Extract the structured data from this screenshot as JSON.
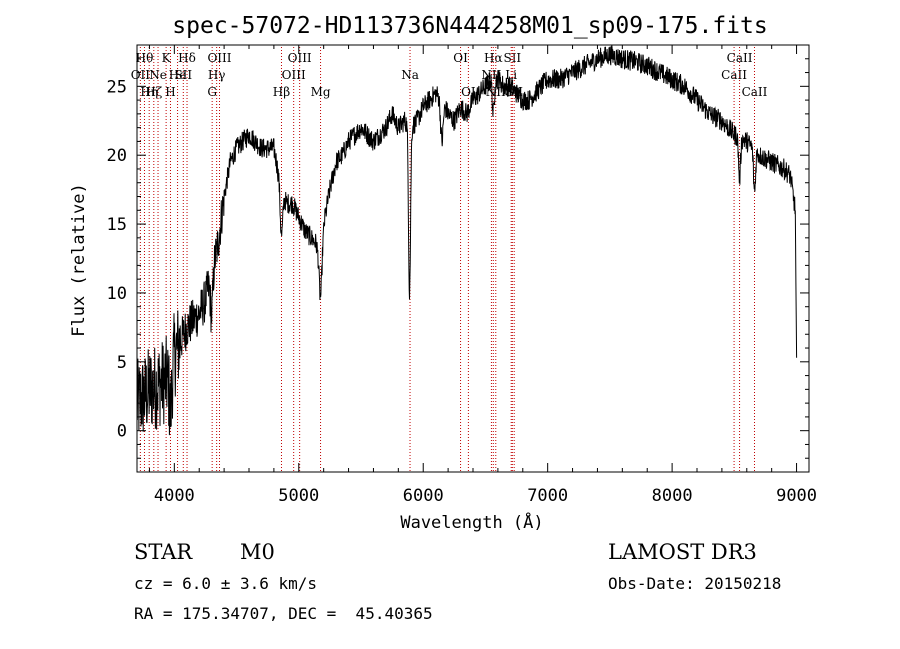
{
  "chart_data": {
    "type": "line",
    "title": "spec-57072-HD113736N444258M01_sp09-175.fits",
    "xlabel": "Wavelength (Å)",
    "ylabel": "Flux (relative)",
    "xlim": [
      3700,
      9100
    ],
    "ylim": [
      -3,
      28
    ],
    "xticks": [
      4000,
      5000,
      6000,
      7000,
      8000,
      9000
    ],
    "yticks": [
      0,
      5,
      10,
      15,
      20,
      25
    ],
    "grid": false,
    "line_color": "#000000",
    "marker_color": "#c00000",
    "spectrum_nodes": [
      [
        3700,
        2.0
      ],
      [
        3760,
        2.5
      ],
      [
        3800,
        3.0
      ],
      [
        3850,
        3.2
      ],
      [
        3900,
        3.5
      ],
      [
        3950,
        3.8
      ],
      [
        4000,
        5.5
      ],
      [
        4050,
        6.5
      ],
      [
        4100,
        7.5
      ],
      [
        4150,
        8.0
      ],
      [
        4200,
        8.5
      ],
      [
        4250,
        9.5
      ],
      [
        4300,
        11.5
      ],
      [
        4350,
        13.5
      ],
      [
        4400,
        17.0
      ],
      [
        4450,
        19.5
      ],
      [
        4500,
        20.5
      ],
      [
        4550,
        21.0
      ],
      [
        4600,
        21.5
      ],
      [
        4650,
        21.0
      ],
      [
        4700,
        20.5
      ],
      [
        4750,
        20.5
      ],
      [
        4800,
        20.5
      ],
      [
        4850,
        18.0
      ],
      [
        4900,
        16.5
      ],
      [
        4950,
        16.5
      ],
      [
        5000,
        15.5
      ],
      [
        5050,
        14.5
      ],
      [
        5100,
        14.0
      ],
      [
        5150,
        13.5
      ],
      [
        5200,
        15.0
      ],
      [
        5250,
        17.5
      ],
      [
        5300,
        19.5
      ],
      [
        5350,
        20.0
      ],
      [
        5400,
        21.0
      ],
      [
        5450,
        21.5
      ],
      [
        5500,
        22.0
      ],
      [
        5550,
        21.5
      ],
      [
        5600,
        21.0
      ],
      [
        5650,
        21.5
      ],
      [
        5700,
        22.0
      ],
      [
        5750,
        23.0
      ],
      [
        5800,
        22.0
      ],
      [
        5850,
        22.5
      ],
      [
        5900,
        22.0
      ],
      [
        5950,
        22.5
      ],
      [
        6000,
        23.5
      ],
      [
        6050,
        24.0
      ],
      [
        6100,
        24.5
      ],
      [
        6150,
        24.0
      ],
      [
        6200,
        23.0
      ],
      [
        6250,
        22.5
      ],
      [
        6300,
        23.5
      ],
      [
        6350,
        23.0
      ],
      [
        6400,
        24.0
      ],
      [
        6450,
        24.5
      ],
      [
        6500,
        25.0
      ],
      [
        6550,
        25.5
      ],
      [
        6600,
        25.5
      ],
      [
        6650,
        25.0
      ],
      [
        6700,
        25.0
      ],
      [
        6750,
        24.5
      ],
      [
        6800,
        24.0
      ],
      [
        6850,
        24.0
      ],
      [
        6900,
        24.5
      ],
      [
        6950,
        25.0
      ],
      [
        7000,
        25.5
      ],
      [
        7100,
        25.5
      ],
      [
        7200,
        26.0
      ],
      [
        7300,
        26.5
      ],
      [
        7400,
        27.0
      ],
      [
        7500,
        27.3
      ],
      [
        7600,
        27.0
      ],
      [
        7700,
        26.8
      ],
      [
        7800,
        26.5
      ],
      [
        7900,
        26.0
      ],
      [
        8000,
        25.5
      ],
      [
        8100,
        25.0
      ],
      [
        8200,
        24.0
      ],
      [
        8300,
        23.0
      ],
      [
        8400,
        22.5
      ],
      [
        8500,
        21.5
      ],
      [
        8600,
        21.0
      ],
      [
        8700,
        20.0
      ],
      [
        8800,
        19.5
      ],
      [
        8900,
        19.0
      ],
      [
        8950,
        18.5
      ],
      [
        8990,
        16.0
      ],
      [
        9000,
        5.0
      ]
    ],
    "absorption_features": [
      {
        "x": 5890,
        "depth": 12.0,
        "width": 8
      },
      {
        "x": 5175,
        "depth": 4.5,
        "width": 12
      },
      {
        "x": 4861,
        "depth": 3.5,
        "width": 10
      },
      {
        "x": 6563,
        "depth": 2.5,
        "width": 8
      },
      {
        "x": 6150,
        "depth": 3.0,
        "width": 10
      },
      {
        "x": 8542,
        "depth": 3.0,
        "width": 8
      },
      {
        "x": 8662,
        "depth": 3.0,
        "width": 8
      },
      {
        "x": 4300,
        "depth": 3.0,
        "width": 10
      },
      {
        "x": 3970,
        "depth": 3.0,
        "width": 10
      }
    ],
    "line_markers": [
      {
        "x": 3727,
        "label": "OII",
        "row": 2
      },
      {
        "x": 3760,
        "label": "Hθ",
        "row": 1
      },
      {
        "x": 3798,
        "label": "Hη",
        "row": 3
      },
      {
        "x": 3835,
        "label": "Hζ",
        "row": 3
      },
      {
        "x": 3869,
        "label": "Ne",
        "row": 2
      },
      {
        "x": 3934,
        "label": "K",
        "row": 1
      },
      {
        "x": 3969,
        "label": "H",
        "row": 3
      },
      {
        "x": 4026,
        "label": "He",
        "row": 2
      },
      {
        "x": 4072,
        "label": "SII",
        "row": 2
      },
      {
        "x": 4102,
        "label": "Hδ",
        "row": 1
      },
      {
        "x": 4304,
        "label": "G",
        "row": 3
      },
      {
        "x": 4340,
        "label": "Hγ",
        "row": 2
      },
      {
        "x": 4363,
        "label": "OIII",
        "row": 1
      },
      {
        "x": 4861,
        "label": "Hβ",
        "row": 3
      },
      {
        "x": 4959,
        "label": "OIII",
        "row": 2
      },
      {
        "x": 5007,
        "label": "OIII",
        "row": 1
      },
      {
        "x": 5175,
        "label": "Mg",
        "row": 3
      },
      {
        "x": 5894,
        "label": "Na",
        "row": 2
      },
      {
        "x": 6300,
        "label": "OI",
        "row": 1
      },
      {
        "x": 6363,
        "label": "OI",
        "row": 3
      },
      {
        "x": 6548,
        "label": "NII",
        "row": 2
      },
      {
        "x": 6563,
        "label": "Hα",
        "row": 1
      },
      {
        "x": 6583,
        "label": "NII",
        "row": 3
      },
      {
        "x": 6707,
        "label": "Li",
        "row": 2
      },
      {
        "x": 6716,
        "label": "SII",
        "row": 1
      },
      {
        "x": 6731,
        "label": "SII",
        "row": 3
      },
      {
        "x": 8498,
        "label": "CaII",
        "row": 2
      },
      {
        "x": 8542,
        "label": "CaII",
        "row": 1
      },
      {
        "x": 8662,
        "label": "CaII",
        "row": 3
      }
    ]
  },
  "info": {
    "object_class": "STAR",
    "subclass": "M0",
    "survey": "LAMOST DR3",
    "velocity": "cz = 6.0 ± 3.6 km/s",
    "obs_date": "Obs-Date: 20150218",
    "coords": "RA = 175.34707, DEC =  45.40365"
  }
}
